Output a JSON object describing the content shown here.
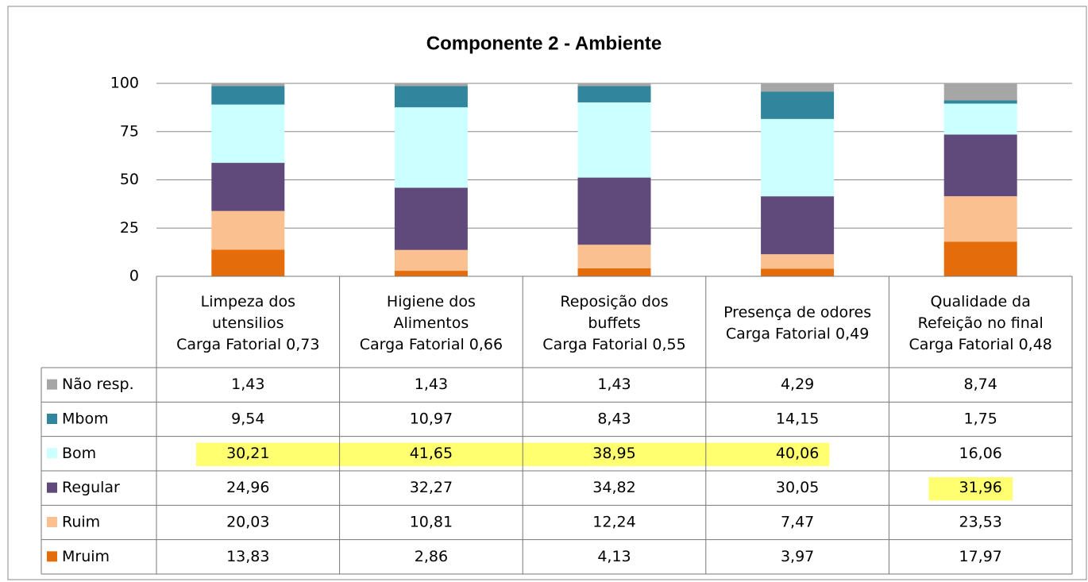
{
  "chart_data": {
    "type": "stacked_bar",
    "title": "Componente 2 - Ambiente",
    "categories": [
      [
        "Limpeza dos",
        "utensilios",
        "Carga Fatorial 0,73"
      ],
      [
        "Higiene dos",
        "Alimentos",
        "Carga Fatorial 0,66"
      ],
      [
        "Reposição dos",
        "buffets",
        "Carga Fatorial 0,55"
      ],
      [
        "Presença de odores",
        "Carga Fatorial 0,49"
      ],
      [
        "Qualidade da",
        "Refeição no final",
        "Carga Fatorial 0,48"
      ]
    ],
    "series": [
      {
        "name": "Mruim",
        "color": "#e46c0a",
        "values": [
          13.83,
          2.86,
          4.13,
          3.97,
          17.97
        ],
        "value_labels": [
          "13,83",
          "2,86",
          "4,13",
          "3,97",
          "17,97"
        ],
        "highlighted": [
          false,
          false,
          false,
          false,
          false
        ]
      },
      {
        "name": "Ruim",
        "color": "#fac090",
        "values": [
          20.03,
          10.81,
          12.24,
          7.47,
          23.53
        ],
        "value_labels": [
          "20,03",
          "10,81",
          "12,24",
          "7,47",
          "23,53"
        ],
        "highlighted": [
          false,
          false,
          false,
          false,
          false
        ]
      },
      {
        "name": "Regular",
        "color": "#604a7b",
        "values": [
          24.96,
          32.27,
          34.82,
          30.05,
          31.96
        ],
        "value_labels": [
          "24,96",
          "32,27",
          "34,82",
          "30,05",
          "31,96"
        ],
        "highlighted": [
          false,
          false,
          false,
          false,
          true
        ]
      },
      {
        "name": "Bom",
        "color": "#ccffff",
        "values": [
          30.21,
          41.65,
          38.95,
          40.06,
          16.06
        ],
        "value_labels": [
          "30,21",
          "41,65",
          "38,95",
          "40,06",
          "16,06"
        ],
        "highlighted": [
          true,
          true,
          true,
          true,
          false
        ]
      },
      {
        "name": "Mbom",
        "color": "#31859c",
        "values": [
          9.54,
          10.97,
          8.43,
          14.15,
          1.75
        ],
        "value_labels": [
          "9,54",
          "10,97",
          "8,43",
          "14,15",
          "1,75"
        ],
        "highlighted": [
          false,
          false,
          false,
          false,
          false
        ]
      },
      {
        "name": "Não resp.",
        "color": "#a6a6a6",
        "values": [
          1.43,
          1.43,
          1.43,
          4.29,
          8.74
        ],
        "value_labels": [
          "1,43",
          "1,43",
          "1,43",
          "4,29",
          "8,74"
        ],
        "highlighted": [
          false,
          false,
          false,
          false,
          false
        ]
      }
    ],
    "highlight_color": "#ffff70",
    "ylim": [
      0,
      100
    ],
    "yticks": [
      0,
      25,
      50,
      75,
      100
    ],
    "grid": true
  }
}
